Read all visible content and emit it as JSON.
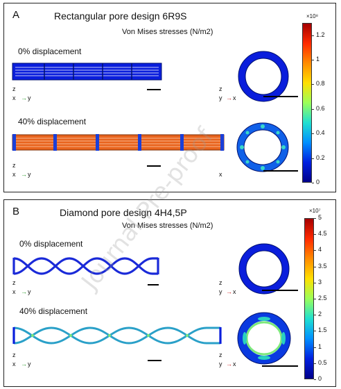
{
  "panels": [
    {
      "letter": "A",
      "title": "Rectangular pore design 6R9S",
      "subtitle": "Von Mises stresses (N/m2)",
      "label_0": "0% displacement",
      "label_40": "40% displacement",
      "colorbar": {
        "exponent": "×10⁸",
        "ticks": [
          "1.2",
          "1",
          "0.8",
          "0.6",
          "0.4",
          "0.2",
          "0"
        ],
        "max": 1.3,
        "colors": [
          "#a50000",
          "#ff2a00",
          "#ff8c00",
          "#ffe000",
          "#9bff5a",
          "#20e0d0",
          "#0090ff",
          "#0020e0",
          "#00008a"
        ]
      }
    },
    {
      "letter": "B",
      "title": "Diamond pore design 4H4,5P",
      "subtitle": "Von Mises stresses (N/m2)",
      "label_0": "0% displacement",
      "label_40": "40% displacement",
      "colorbar": {
        "exponent": "×10⁷",
        "ticks": [
          "5",
          "4.5",
          "4",
          "3.5",
          "3",
          "2.5",
          "2",
          "1.5",
          "1",
          "0.5",
          "0"
        ],
        "max": 5,
        "colors": [
          "#a50000",
          "#ff2a00",
          "#ff8c00",
          "#ffe000",
          "#9bff5a",
          "#20e0d0",
          "#0090ff",
          "#0020e0",
          "#00008a"
        ]
      }
    }
  ],
  "axes_labels": {
    "z": "z",
    "y": "y",
    "x": "x"
  },
  "watermark": "Journal Pre-proof"
}
